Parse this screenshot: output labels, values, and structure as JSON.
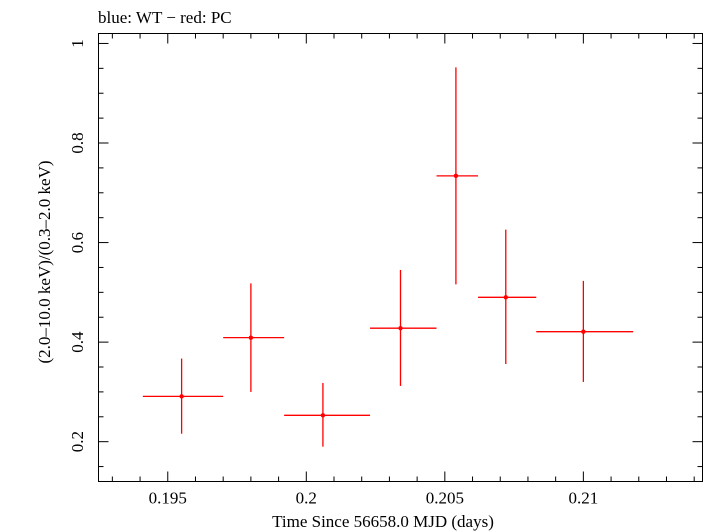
{
  "chart_data": {
    "type": "scatter",
    "title": "blue: WT − red: PC",
    "xlabel": "Time Since 56658.0 MJD (days)",
    "ylabel": "(2.0–10.0 keV)/(0.3–2.0 keV)",
    "xlim": [
      0.1925,
      0.2143
    ],
    "ylim": [
      0.12,
      1.02
    ],
    "x_ticks": [
      0.195,
      0.2,
      0.205,
      0.21
    ],
    "x_tick_labels": [
      "0.195",
      "0.2",
      "0.205",
      "0.21"
    ],
    "y_ticks": [
      0.2,
      0.4,
      0.6,
      0.8,
      1.0
    ],
    "y_tick_labels": [
      "0.2",
      "0.4",
      "0.6",
      "0.8",
      "1"
    ],
    "grid": false,
    "series": [
      {
        "color": "#ff0000",
        "points": [
          {
            "x": 0.1955,
            "y": 0.291,
            "xerr_low": 0.1941,
            "xerr_high": 0.197,
            "yerr_low": 0.216,
            "yerr_high": 0.367
          },
          {
            "x": 0.198,
            "y": 0.409,
            "xerr_low": 0.197,
            "xerr_high": 0.1992,
            "yerr_low": 0.3,
            "yerr_high": 0.518
          },
          {
            "x": 0.2006,
            "y": 0.253,
            "xerr_low": 0.1992,
            "xerr_high": 0.2023,
            "yerr_low": 0.19,
            "yerr_high": 0.318
          },
          {
            "x": 0.2034,
            "y": 0.428,
            "xerr_low": 0.2023,
            "xerr_high": 0.2047,
            "yerr_low": 0.312,
            "yerr_high": 0.545
          },
          {
            "x": 0.2054,
            "y": 0.734,
            "xerr_low": 0.2047,
            "xerr_high": 0.2062,
            "yerr_low": 0.516,
            "yerr_high": 0.952
          },
          {
            "x": 0.2072,
            "y": 0.49,
            "xerr_low": 0.2062,
            "xerr_high": 0.2083,
            "yerr_low": 0.356,
            "yerr_high": 0.626
          },
          {
            "x": 0.21,
            "y": 0.421,
            "xerr_low": 0.2083,
            "xerr_high": 0.2118,
            "yerr_low": 0.32,
            "yerr_high": 0.523
          }
        ]
      }
    ]
  }
}
